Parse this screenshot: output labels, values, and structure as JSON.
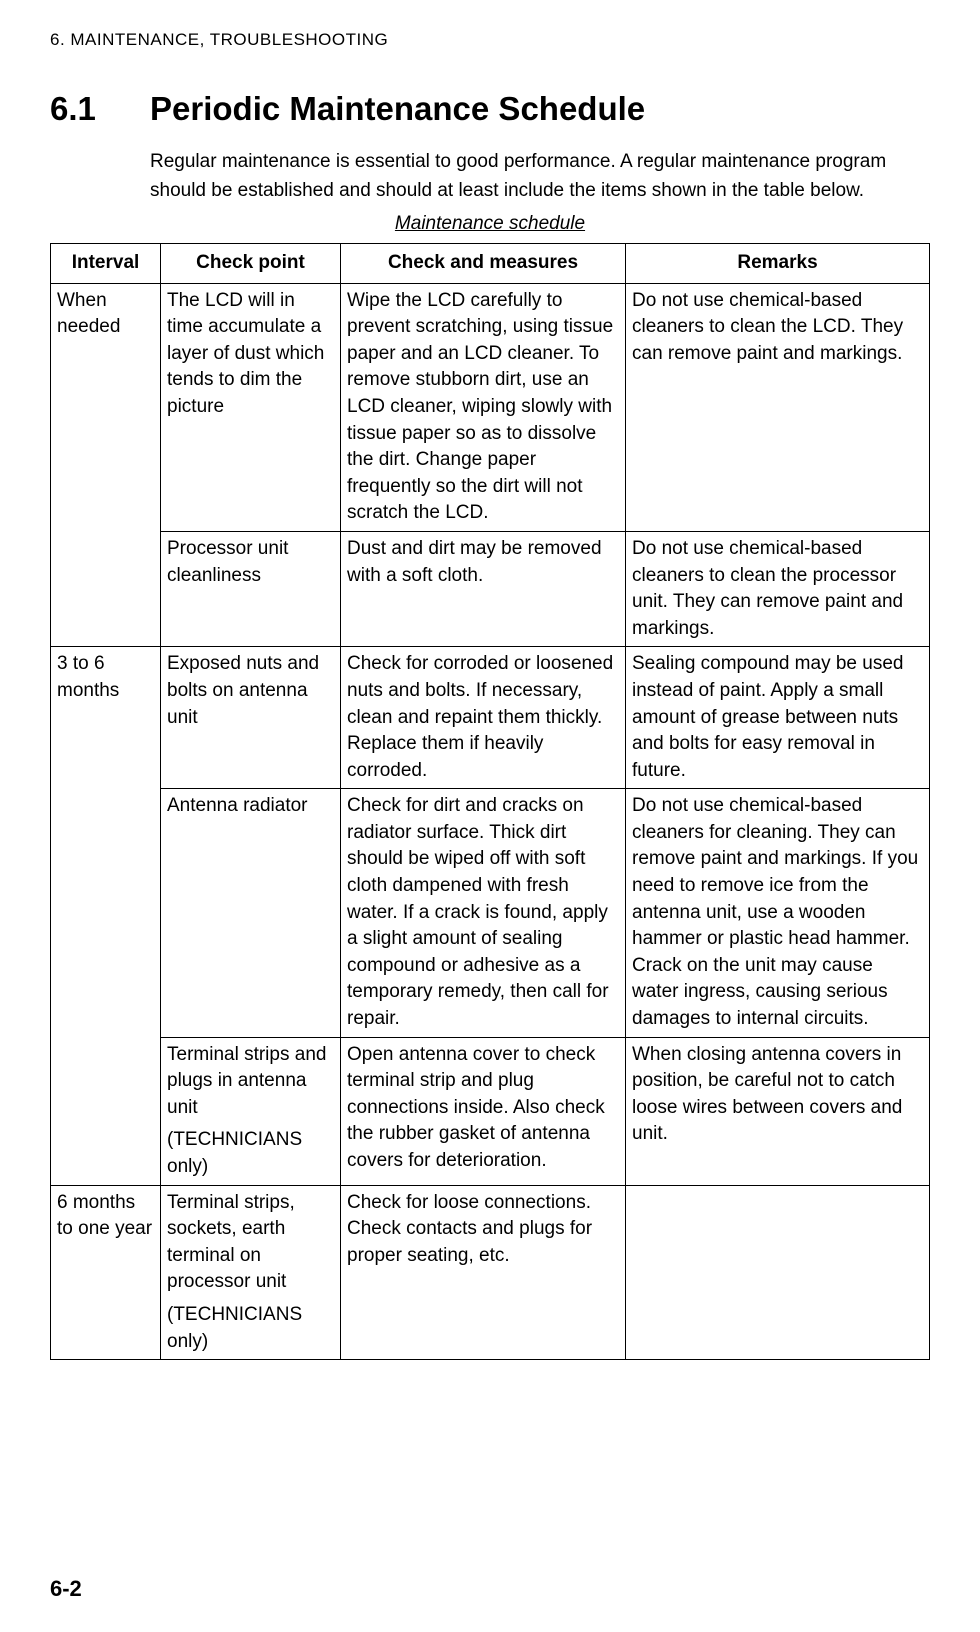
{
  "header": "6. MAINTENANCE, TROUBLESHOOTING",
  "section_num": "6.1",
  "section_title": "Periodic Maintenance Schedule",
  "intro": "Regular maintenance is essential to good performance. A regular maintenance program should be established and should at least include the items shown in the table below.",
  "table_caption": "Maintenance schedule",
  "columns": {
    "interval": "Interval",
    "check_point": "Check point",
    "measures": "Check and measures",
    "remarks": "Remarks"
  },
  "rows": {
    "r1": {
      "interval": "When needed",
      "check_point": "The LCD will in time accumulate a layer of dust which tends to dim the picture",
      "measures": "Wipe the LCD carefully to prevent scratching, using tissue paper and an LCD cleaner. To remove stubborn dirt, use an LCD cleaner, wiping slowly with tissue paper so as to dissolve the dirt. Change paper frequently so the dirt will not scratch the LCD.",
      "remarks": "Do not use chemical-based cleaners to clean the LCD. They can remove paint and markings."
    },
    "r2": {
      "check_point": "Processor unit cleanliness",
      "measures": "Dust and dirt may be removed with a soft cloth.",
      "remarks": "Do not use chemical-based cleaners to clean the processor unit. They can remove paint and markings."
    },
    "r3": {
      "interval": "3 to 6 months",
      "check_point": "Exposed nuts and bolts on antenna unit",
      "measures": "Check for corroded or loosened nuts and bolts. If necessary, clean and repaint them thickly. Replace them if heavily corroded.",
      "remarks": "Sealing compound may be used instead of paint. Apply a small amount of grease between nuts and bolts for easy removal in future."
    },
    "r4": {
      "check_point": "Antenna radiator",
      "measures": "Check for dirt and cracks on radiator surface. Thick dirt should be wiped off with soft cloth dampened with fresh water. If a crack is found, apply a slight amount of sealing compound or adhesive as a temporary remedy, then call for repair.",
      "remarks": "Do not use chemical-based cleaners for cleaning. They can remove paint and markings. If you need to remove ice from the antenna unit, use a wooden hammer or plastic head hammer. Crack on the unit may cause water ingress, causing serious damages to internal circuits."
    },
    "r5": {
      "check_point": "Terminal strips and plugs in antenna unit",
      "check_point_sub": "(TECHNICIANS only)",
      "measures": "Open antenna cover to check terminal strip and plug connections inside. Also check the rubber gasket of antenna covers for deterioration.",
      "remarks": "When closing antenna covers in position, be careful not to catch loose wires between covers and unit."
    },
    "r6": {
      "interval": "6 months to one year",
      "check_point": "Terminal strips, sockets, earth terminal on processor unit",
      "check_point_sub": "(TECHNICIANS only)",
      "measures": "Check for loose connections. Check contacts and plugs for proper seating, etc.",
      "remarks": ""
    }
  },
  "page_num": "6-2"
}
